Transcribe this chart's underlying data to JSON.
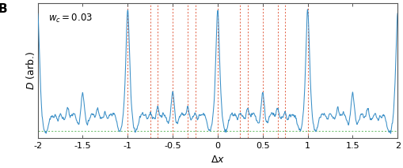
{
  "title": "",
  "xlabel": "$\\Delta x$",
  "ylabel": "$D$ (arb.)",
  "panel_label": "B",
  "annotation": "$w_c = 0.03$",
  "xlim": [
    -2,
    2
  ],
  "line_color": "#3a8fc7",
  "red_dashed_color": "#e05030",
  "green_dashed_color": "#5cb85c",
  "wc": 0.03,
  "bg_color": "#ffffff",
  "red_vlines": [
    -1.0,
    -0.75,
    -0.6667,
    -0.5,
    -0.3333,
    -0.25,
    0.0,
    0.25,
    0.3333,
    0.5,
    0.6667,
    0.75,
    1.0
  ],
  "figsize": [
    5.1,
    2.13
  ],
  "dpi": 100
}
